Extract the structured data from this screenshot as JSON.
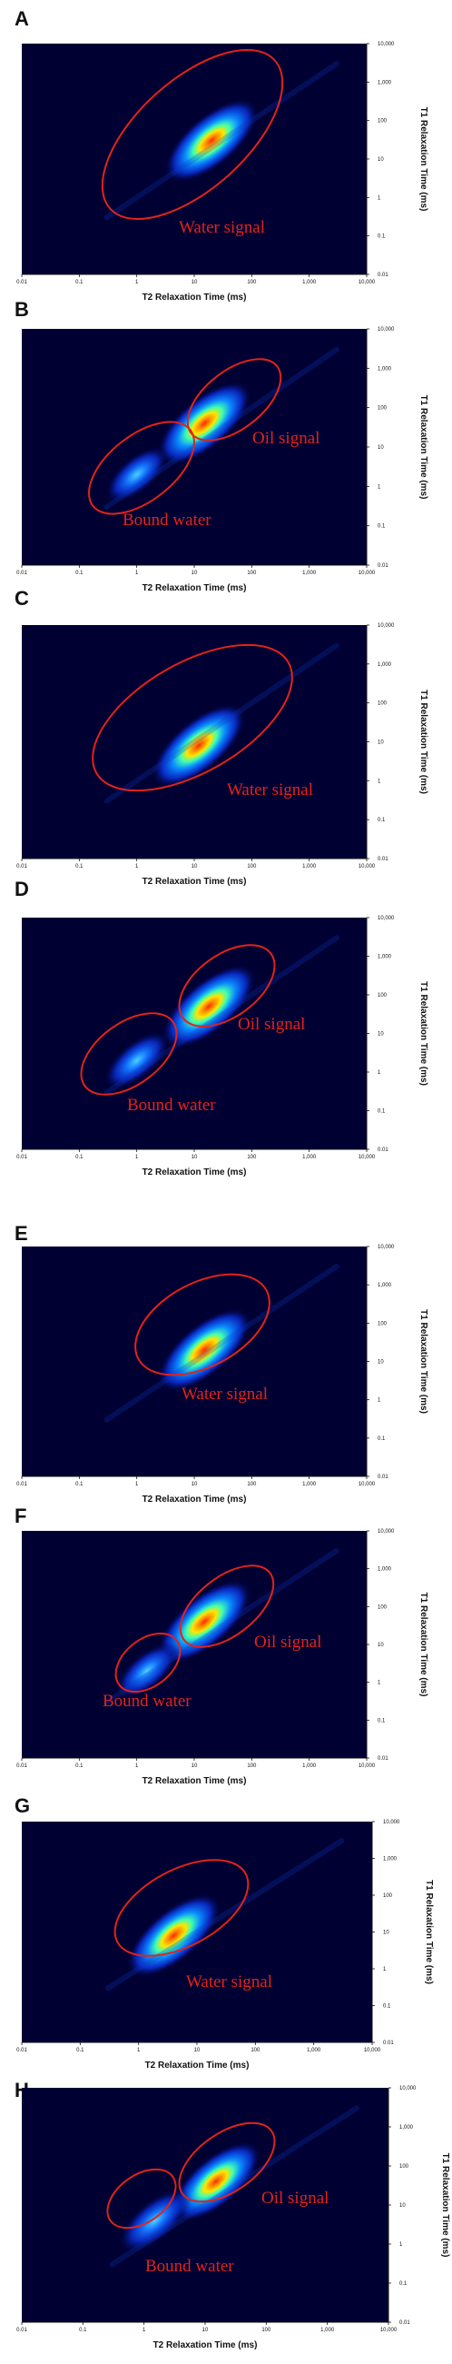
{
  "chart_data": [
    {
      "panel": "A",
      "type": "heatmap",
      "xlabel": "T2 Relaxation Time (ms)",
      "ylabel": "T1 Relaxation Time (ms)",
      "xscale": "log",
      "yscale": "log",
      "xlim": [
        0.01,
        10000
      ],
      "ylim": [
        0.01,
        10000
      ],
      "x_ticks": [
        "0.01",
        "0.1",
        "1",
        "10",
        "100",
        "1,000",
        "10,000"
      ],
      "y_ticks": [
        "0.01",
        "0.1",
        "1",
        "10",
        "100",
        "1,000",
        "10,000"
      ],
      "background_color": "#000033",
      "peaks": [
        {
          "t2": 20,
          "t1": 30,
          "intensity": 1.0
        }
      ],
      "annotations": [
        {
          "label": "Water signal"
        }
      ]
    },
    {
      "panel": "B",
      "type": "heatmap",
      "xlabel": "T2 Relaxation Time (ms)",
      "ylabel": "T1 Relaxation Time (ms)",
      "xscale": "log",
      "yscale": "log",
      "xlim": [
        0.01,
        10000
      ],
      "ylim": [
        0.01,
        10000
      ],
      "x_ticks": [
        "0.01",
        "0.1",
        "1",
        "10",
        "100",
        "1,000",
        "10,000"
      ],
      "y_ticks": [
        "0.01",
        "0.1",
        "1",
        "10",
        "100",
        "1,000",
        "10,000"
      ],
      "background_color": "#000033",
      "peaks": [
        {
          "t2": 15,
          "t1": 40,
          "intensity": 1.0
        },
        {
          "t2": 1,
          "t1": 2,
          "intensity": 0.3
        }
      ],
      "annotations": [
        {
          "label": "Oil signal"
        },
        {
          "label": "Bound water"
        }
      ]
    },
    {
      "panel": "C",
      "type": "heatmap",
      "xlabel": "T2 Relaxation Time (ms)",
      "ylabel": "T1 Relaxation Time (ms)",
      "xscale": "log",
      "yscale": "log",
      "xlim": [
        0.01,
        10000
      ],
      "ylim": [
        0.01,
        10000
      ],
      "x_ticks": [
        "0.01",
        "0.1",
        "1",
        "10",
        "100",
        "1,000",
        "10,000"
      ],
      "y_ticks": [
        "0.01",
        "0.1",
        "1",
        "10",
        "100",
        "1,000",
        "10,000"
      ],
      "background_color": "#000033",
      "peaks": [
        {
          "t2": 12,
          "t1": 8,
          "intensity": 1.0
        }
      ],
      "annotations": [
        {
          "label": "Water signal"
        }
      ]
    },
    {
      "panel": "D",
      "type": "heatmap",
      "xlabel": "T2 Relaxation Time (ms)",
      "ylabel": "T1 Relaxation Time (ms)",
      "xscale": "log",
      "yscale": "log",
      "xlim": [
        0.01,
        10000
      ],
      "ylim": [
        0.01,
        10000
      ],
      "x_ticks": [
        "0.01",
        "0.1",
        "1",
        "10",
        "100",
        "1,000",
        "10,000"
      ],
      "y_ticks": [
        "0.01",
        "0.1",
        "1",
        "10",
        "100",
        "1,000",
        "10,000"
      ],
      "background_color": "#000033",
      "peaks": [
        {
          "t2": 18,
          "t1": 50,
          "intensity": 1.0
        },
        {
          "t2": 1,
          "t1": 2,
          "intensity": 0.35
        }
      ],
      "annotations": [
        {
          "label": "Oil signal"
        },
        {
          "label": "Bound water"
        }
      ]
    },
    {
      "panel": "E",
      "type": "heatmap",
      "xlabel": "T2 Relaxation Time (ms)",
      "ylabel": "T1 Relaxation Time (ms)",
      "xscale": "log",
      "yscale": "log",
      "xlim": [
        0.01,
        10000
      ],
      "ylim": [
        0.01,
        10000
      ],
      "x_ticks": [
        "0.01",
        "0.1",
        "1",
        "10",
        "100",
        "1,000",
        "10,000"
      ],
      "y_ticks": [
        "0.01",
        "0.1",
        "1",
        "10",
        "100",
        "1,000",
        "10,000"
      ],
      "background_color": "#000033",
      "peaks": [
        {
          "t2": 15,
          "t1": 20,
          "intensity": 1.0
        }
      ],
      "annotations": [
        {
          "label": "Water signal"
        }
      ]
    },
    {
      "panel": "F",
      "type": "heatmap",
      "xlabel": "T2 Relaxation Time (ms)",
      "ylabel": "T1 Relaxation Time (ms)",
      "xscale": "log",
      "yscale": "log",
      "xlim": [
        0.01,
        10000
      ],
      "ylim": [
        0.01,
        10000
      ],
      "x_ticks": [
        "0.01",
        "0.1",
        "1",
        "10",
        "100",
        "1,000",
        "10,000"
      ],
      "y_ticks": [
        "0.01",
        "0.1",
        "1",
        "10",
        "100",
        "1,000",
        "10,000"
      ],
      "background_color": "#000033",
      "peaks": [
        {
          "t2": 15,
          "t1": 40,
          "intensity": 1.0
        },
        {
          "t2": 1.5,
          "t1": 2,
          "intensity": 0.3
        }
      ],
      "annotations": [
        {
          "label": "Oil signal"
        },
        {
          "label": "Bound water"
        }
      ]
    },
    {
      "panel": "G",
      "type": "heatmap",
      "xlabel": "T2 Relaxation Time (ms)",
      "ylabel": "T1 Relaxation Time (ms)",
      "xscale": "log",
      "yscale": "log",
      "xlim": [
        0.01,
        10000
      ],
      "ylim": [
        0.01,
        10000
      ],
      "x_ticks": [
        "0.01",
        "0.1",
        "1",
        "10",
        "100",
        "1,000",
        "10,000"
      ],
      "y_ticks": [
        "0.01",
        "0.1",
        "1",
        "10",
        "100",
        "1,000",
        "10,000"
      ],
      "background_color": "#000033",
      "peaks": [
        {
          "t2": 4,
          "t1": 8,
          "intensity": 1.0
        }
      ],
      "annotations": [
        {
          "label": "Water signal"
        }
      ]
    },
    {
      "panel": "H",
      "type": "heatmap",
      "xlabel": "T2 Relaxation Time (ms)",
      "ylabel": "T1 Relaxation Time (ms)",
      "xscale": "log",
      "yscale": "log",
      "xlim": [
        0.01,
        10000
      ],
      "ylim": [
        0.01,
        10000
      ],
      "x_ticks": [
        "0.01",
        "0.1",
        "1",
        "10",
        "100",
        "1,000",
        "10,000"
      ],
      "y_ticks": [
        "0.01",
        "0.1",
        "1",
        "10",
        "100",
        "1,000",
        "10,000"
      ],
      "background_color": "#000033",
      "peaks": [
        {
          "t2": 15,
          "t1": 40,
          "intensity": 0.9
        },
        {
          "t2": 1.5,
          "t1": 4,
          "intensity": 0.5
        }
      ],
      "annotations": [
        {
          "label": "Oil signal"
        },
        {
          "label": "Bound water"
        }
      ]
    }
  ]
}
